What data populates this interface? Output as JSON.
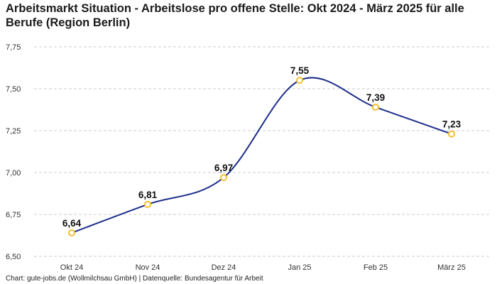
{
  "title": "Arbeitsmarkt Situation - Arbeitslose pro offene Stelle: Okt 2024 - März 2025 für alle Berufe (Region Berlin)",
  "footer": "Chart: gute-jobs.de (Wollmilchsau GmbH) | Datenquelle: Bundesagentur für Arbeit",
  "colors": {
    "line": "#1f2f8c",
    "marker_stroke": "#f2c12e",
    "marker_fill": "#ffffff",
    "grid": "#cccccc"
  },
  "chart_data": {
    "type": "line",
    "title": "Arbeitsmarkt Situation - Arbeitslose pro offene Stelle: Okt 2024 - März 2025 für alle Berufe (Region Berlin)",
    "categories": [
      "Okt 24",
      "Nov 24",
      "Dez 24",
      "Jan 25",
      "Feb 25",
      "März 25"
    ],
    "values": [
      6.64,
      6.81,
      6.97,
      7.55,
      7.39,
      7.23
    ],
    "data_labels": [
      "6,64",
      "6,81",
      "6,97",
      "7,55",
      "7,39",
      "7,23"
    ],
    "y_ticks": [
      6.5,
      6.75,
      7.0,
      7.25,
      7.5,
      7.75
    ],
    "y_tick_labels": [
      "6,50",
      "6,75",
      "7,00",
      "7,25",
      "7,50",
      "7,75"
    ],
    "ylim": [
      6.5,
      7.75
    ],
    "grid": true,
    "legend": "none",
    "curve": "smooth"
  }
}
